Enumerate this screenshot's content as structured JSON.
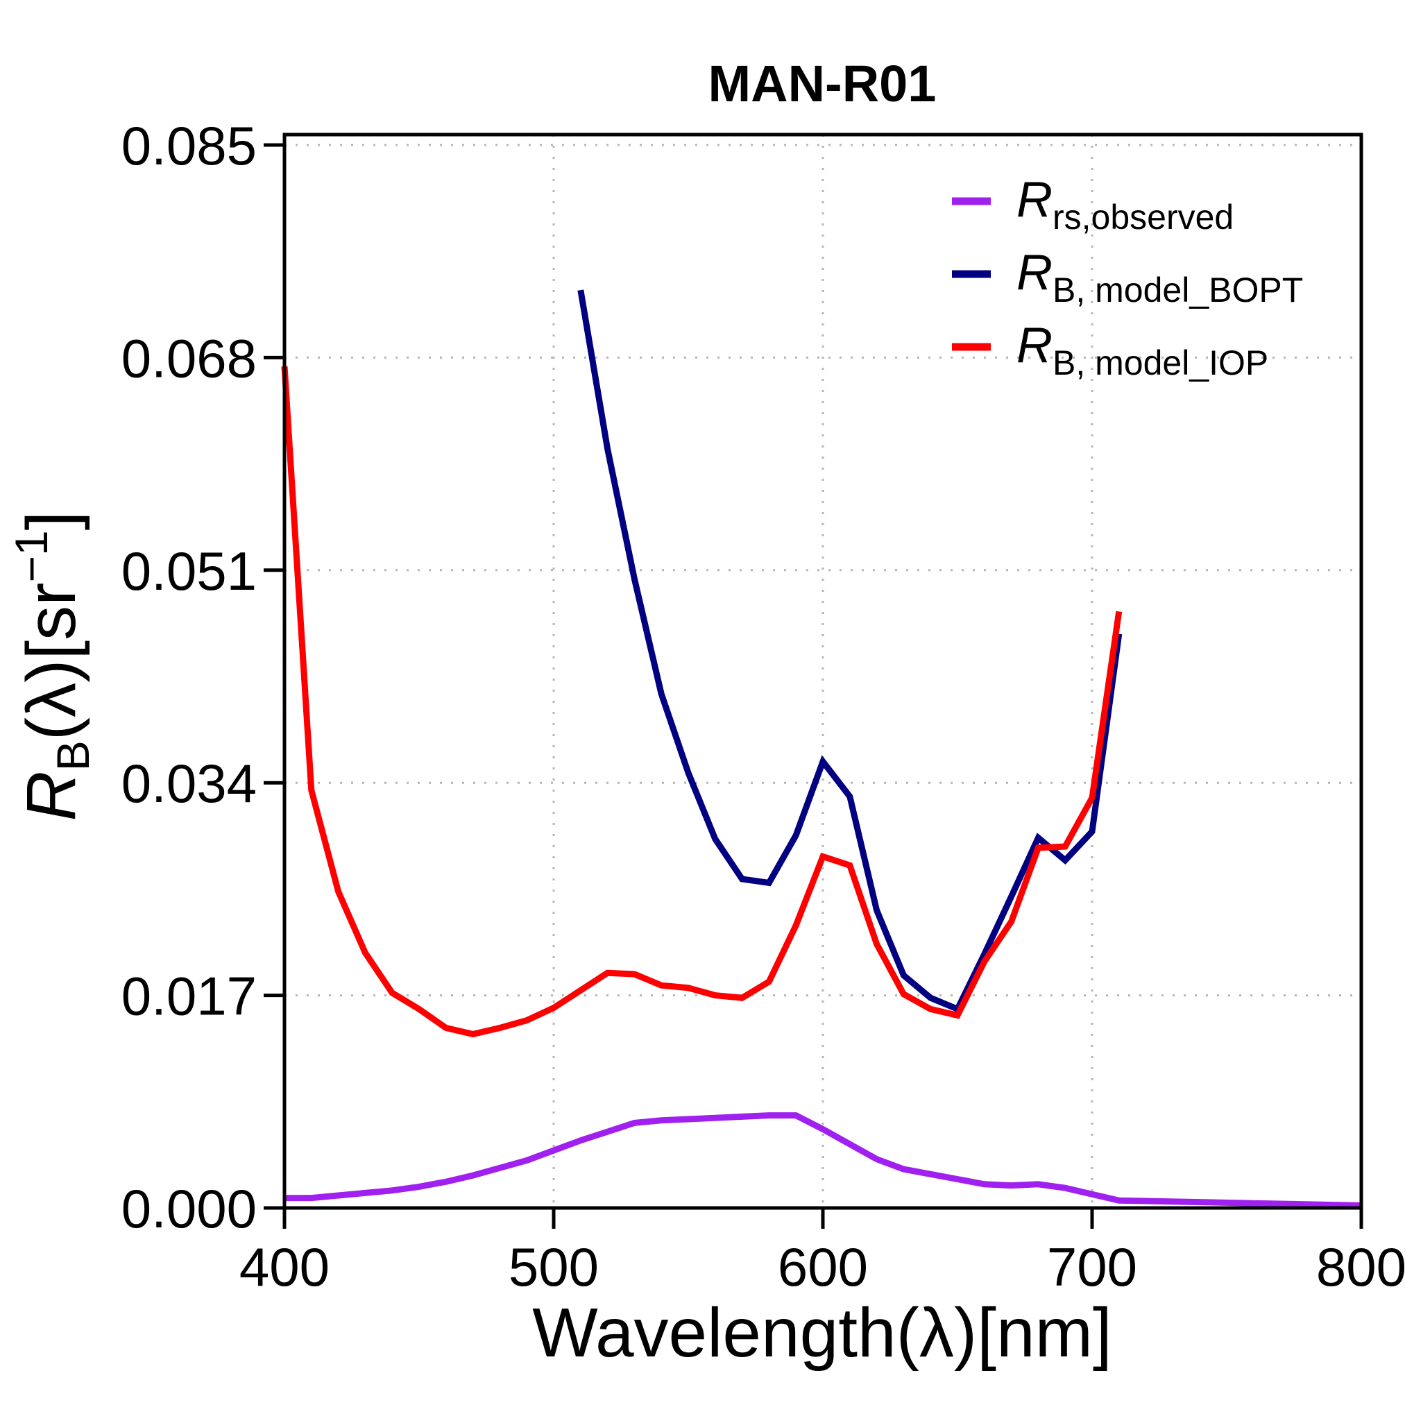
{
  "chart_data": {
    "type": "line",
    "title": "MAN-R01",
    "xlabel": "Wavelength(λ)[nm]",
    "ylabel": {
      "main": "R",
      "sub": "B",
      "rest": "(λ)[sr",
      "sup": "−1",
      "close": "]"
    },
    "xlim": [
      400,
      800
    ],
    "ylim": [
      0.0,
      0.085
    ],
    "xticks": [
      400,
      500,
      600,
      700,
      800
    ],
    "xtick_labels": [
      "400",
      "500",
      "600",
      "700",
      "800"
    ],
    "yticks": [
      0.0,
      0.017,
      0.034,
      0.051,
      0.068,
      0.085
    ],
    "ytick_labels": [
      "0.000",
      "0.017",
      "0.034",
      "0.051",
      "0.068",
      "0.085"
    ],
    "grid": true,
    "legend_position": "top-right",
    "series": [
      {
        "name": "Rrs,observed",
        "name_main": "R",
        "name_sub": "rs,observed",
        "color": "#a020f0",
        "points": [
          [
            400,
            0.0008
          ],
          [
            410,
            0.0008
          ],
          [
            420,
            0.001
          ],
          [
            430,
            0.0012
          ],
          [
            440,
            0.0014
          ],
          [
            450,
            0.0017
          ],
          [
            460,
            0.0021
          ],
          [
            470,
            0.0026
          ],
          [
            480,
            0.0032
          ],
          [
            490,
            0.0038
          ],
          [
            500,
            0.0046
          ],
          [
            510,
            0.0054
          ],
          [
            520,
            0.0061
          ],
          [
            530,
            0.0068
          ],
          [
            540,
            0.007
          ],
          [
            550,
            0.0071
          ],
          [
            560,
            0.0072
          ],
          [
            570,
            0.0073
          ],
          [
            580,
            0.0074
          ],
          [
            590,
            0.0074
          ],
          [
            600,
            0.0063
          ],
          [
            610,
            0.0051
          ],
          [
            620,
            0.0039
          ],
          [
            630,
            0.0031
          ],
          [
            640,
            0.0027
          ],
          [
            650,
            0.0023
          ],
          [
            660,
            0.0019
          ],
          [
            670,
            0.0018
          ],
          [
            680,
            0.0019
          ],
          [
            690,
            0.0016
          ],
          [
            700,
            0.0011
          ],
          [
            710,
            0.0006
          ],
          [
            800,
            0.0002
          ]
        ]
      },
      {
        "name": "RB, model_BOPT",
        "name_main": "R",
        "name_sub": "B, model_BOPT",
        "color": "#000080",
        "points": [
          [
            510,
            0.0734
          ],
          [
            520,
            0.0607
          ],
          [
            530,
            0.0503
          ],
          [
            540,
            0.0411
          ],
          [
            550,
            0.0348
          ],
          [
            560,
            0.0295
          ],
          [
            570,
            0.0263
          ],
          [
            580,
            0.026
          ],
          [
            590,
            0.0298
          ],
          [
            600,
            0.0357
          ],
          [
            610,
            0.0329
          ],
          [
            620,
            0.0238
          ],
          [
            630,
            0.0186
          ],
          [
            640,
            0.0168
          ],
          [
            650,
            0.0159
          ],
          [
            660,
            0.0203
          ],
          [
            670,
            0.0249
          ],
          [
            680,
            0.0296
          ],
          [
            690,
            0.0278
          ],
          [
            700,
            0.0301
          ],
          [
            710,
            0.0459
          ]
        ]
      },
      {
        "name": "RB, model_IOP",
        "name_main": "R",
        "name_sub": "B, model_IOP",
        "color": "#ff0000",
        "points": [
          [
            400,
            0.0673
          ],
          [
            410,
            0.0334
          ],
          [
            420,
            0.0253
          ],
          [
            430,
            0.0204
          ],
          [
            440,
            0.0172
          ],
          [
            450,
            0.0159
          ],
          [
            460,
            0.0144
          ],
          [
            470,
            0.0139
          ],
          [
            480,
            0.0144
          ],
          [
            490,
            0.015
          ],
          [
            500,
            0.016
          ],
          [
            510,
            0.0174
          ],
          [
            520,
            0.0188
          ],
          [
            530,
            0.0187
          ],
          [
            540,
            0.0178
          ],
          [
            550,
            0.0176
          ],
          [
            560,
            0.017
          ],
          [
            570,
            0.0168
          ],
          [
            580,
            0.0181
          ],
          [
            590,
            0.0226
          ],
          [
            600,
            0.0281
          ],
          [
            610,
            0.0274
          ],
          [
            620,
            0.0211
          ],
          [
            630,
            0.0171
          ],
          [
            640,
            0.0159
          ],
          [
            650,
            0.0154
          ],
          [
            660,
            0.0197
          ],
          [
            670,
            0.0229
          ],
          [
            680,
            0.0288
          ],
          [
            690,
            0.0289
          ],
          [
            700,
            0.0328
          ],
          [
            710,
            0.0477
          ]
        ]
      }
    ]
  }
}
